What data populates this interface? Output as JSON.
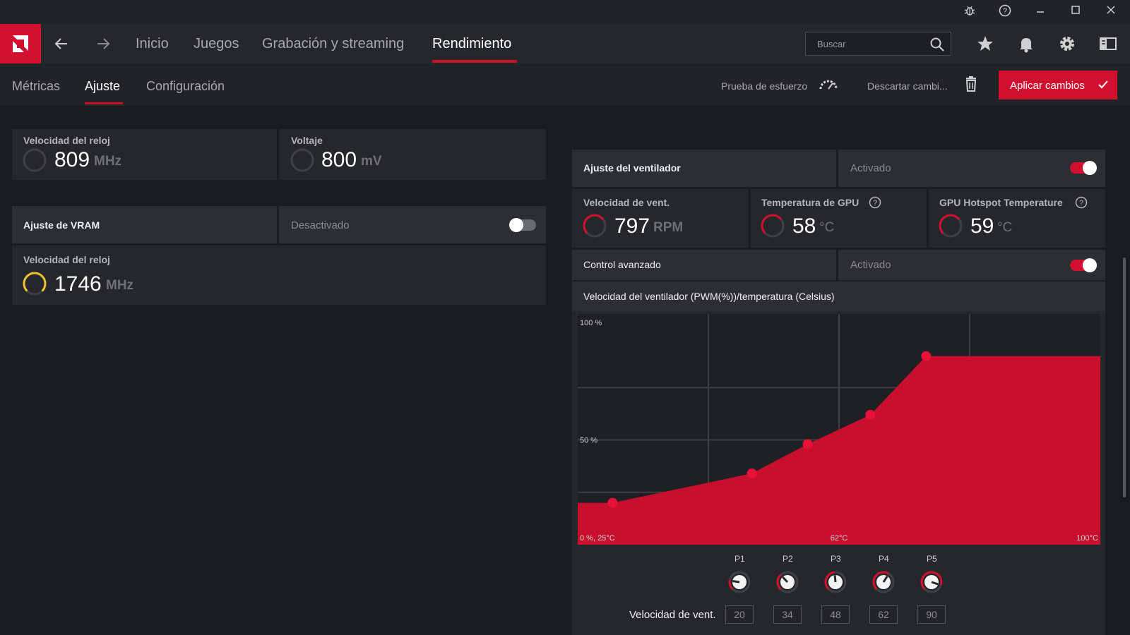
{
  "nav": {
    "items": [
      {
        "label": "Inicio"
      },
      {
        "label": "Juegos"
      },
      {
        "label": "Grabación y streaming"
      },
      {
        "label": "Rendimiento"
      }
    ],
    "search_placeholder": "Buscar"
  },
  "subnav": {
    "tabs": [
      {
        "label": "Métricas"
      },
      {
        "label": "Ajuste"
      },
      {
        "label": "Configuración"
      }
    ],
    "stress_test": "Prueba de esfuerzo",
    "discard": "Descartar cambi...",
    "apply": "Aplicar cambios"
  },
  "gpu": {
    "clock_label": "Velocidad del reloj",
    "clock_value": "809",
    "clock_unit": "MHz",
    "voltage_label": "Voltaje",
    "voltage_value": "800",
    "voltage_unit": "mV"
  },
  "vram": {
    "title": "Ajuste de VRAM",
    "state": "Desactivado",
    "enabled": false,
    "clock_label": "Velocidad del reloj",
    "clock_value": "1746",
    "clock_unit": "MHz"
  },
  "fan": {
    "title": "Ajuste del ventilador",
    "state": "Activado",
    "enabled": true,
    "speed_label": "Velocidad de vent.",
    "speed_value": "797",
    "speed_unit": "RPM",
    "gpu_temp_label": "Temperatura de GPU",
    "gpu_temp_value": "58",
    "gpu_temp_unit": "°C",
    "hotspot_label": "GPU Hotspot Temperature",
    "hotspot_value": "59",
    "hotspot_unit": "°C",
    "advanced_label": "Control avanzado",
    "advanced_state": "Activado",
    "advanced_enabled": true,
    "curve_title": "Velocidad del ventilador (PWM(%))/temperatura (Celsius)",
    "row_label": "Velocidad de vent."
  },
  "chart_data": {
    "type": "area",
    "title": "Velocidad del ventilador (PWM(%))/temperatura (Celsius)",
    "x_tick_labels": [
      "0 %, 25°C",
      "62°C",
      "100°C"
    ],
    "y_tick_labels": [
      "100 %",
      "50 %"
    ],
    "xlim": [
      25,
      100
    ],
    "ylim": [
      0,
      100
    ],
    "points": [
      {
        "x": 30,
        "y": 20
      },
      {
        "x": 50,
        "y": 34
      },
      {
        "x": 58,
        "y": 48
      },
      {
        "x": 67,
        "y": 62
      },
      {
        "x": 75,
        "y": 90
      }
    ],
    "grid": true,
    "fill_color": "#c8102e"
  },
  "knobs": [
    {
      "label": "P1",
      "value": "20"
    },
    {
      "label": "P2",
      "value": "34"
    },
    {
      "label": "P3",
      "value": "48"
    },
    {
      "label": "P4",
      "value": "62"
    },
    {
      "label": "P5",
      "value": "90"
    }
  ],
  "colors": {
    "accent": "#d1102f",
    "gauge_yellow": "#f2c12e"
  }
}
